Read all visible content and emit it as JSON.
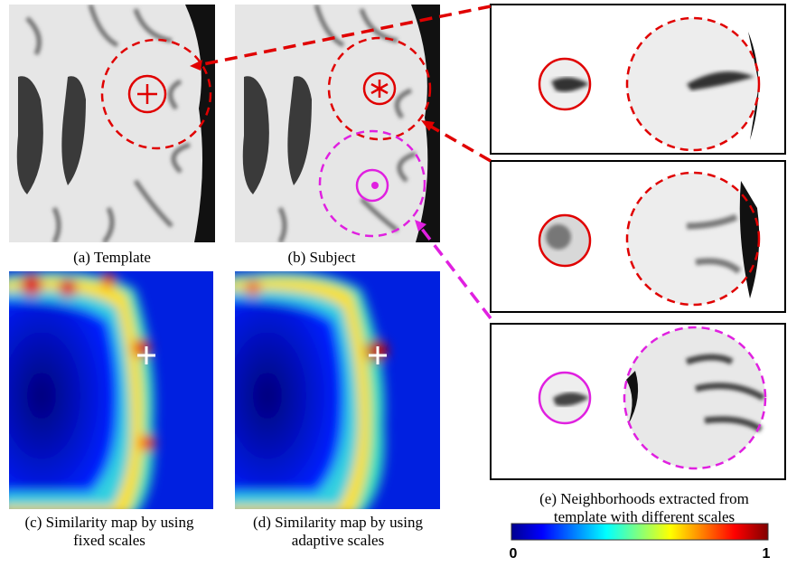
{
  "panels": {
    "template": {
      "caption": "(a) Template"
    },
    "subject": {
      "caption": "(b) Subject"
    },
    "fixed": {
      "caption": [
        "(c) Similarity map by using",
        "fixed scales"
      ]
    },
    "adaptive": {
      "caption": [
        "(d) Similarity map by using",
        "adaptive scales"
      ]
    },
    "neighborhoods": {
      "caption": [
        "(e) Neighborhoods extracted from",
        "template with different scales"
      ]
    }
  },
  "colorbar": {
    "min_label": "0",
    "max_label": "1"
  }
}
